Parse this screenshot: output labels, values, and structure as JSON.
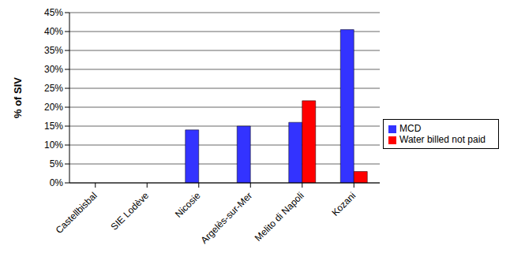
{
  "chart_data": {
    "type": "bar",
    "y_label": "% of SIV",
    "categories": [
      "Castellbisbal",
      "SIE Lodève",
      "Nicosie",
      "Argelès-sur-Mer",
      "Melito di Napoli",
      "Kozani"
    ],
    "series": [
      {
        "name": "MCD",
        "color": "#3333ff",
        "values": [
          null,
          null,
          14,
          15,
          16,
          40.5
        ]
      },
      {
        "name": "Water billed not paid",
        "color": "#ff0000",
        "values": [
          null,
          null,
          null,
          null,
          21.7,
          3
        ]
      }
    ],
    "ylim": [
      0,
      45
    ],
    "yticks": [
      {
        "value": 0,
        "label": "0%"
      },
      {
        "value": 5,
        "label": "5%"
      },
      {
        "value": 10,
        "label": "10%"
      },
      {
        "value": 15,
        "label": "15%"
      },
      {
        "value": 20,
        "label": "20%"
      },
      {
        "value": 25,
        "label": "25%"
      },
      {
        "value": 30,
        "label": "30%"
      },
      {
        "value": 35,
        "label": "35%"
      },
      {
        "value": 40,
        "label": "40%"
      },
      {
        "value": 45,
        "label": "45%"
      }
    ],
    "grid": true,
    "legend": "right"
  }
}
